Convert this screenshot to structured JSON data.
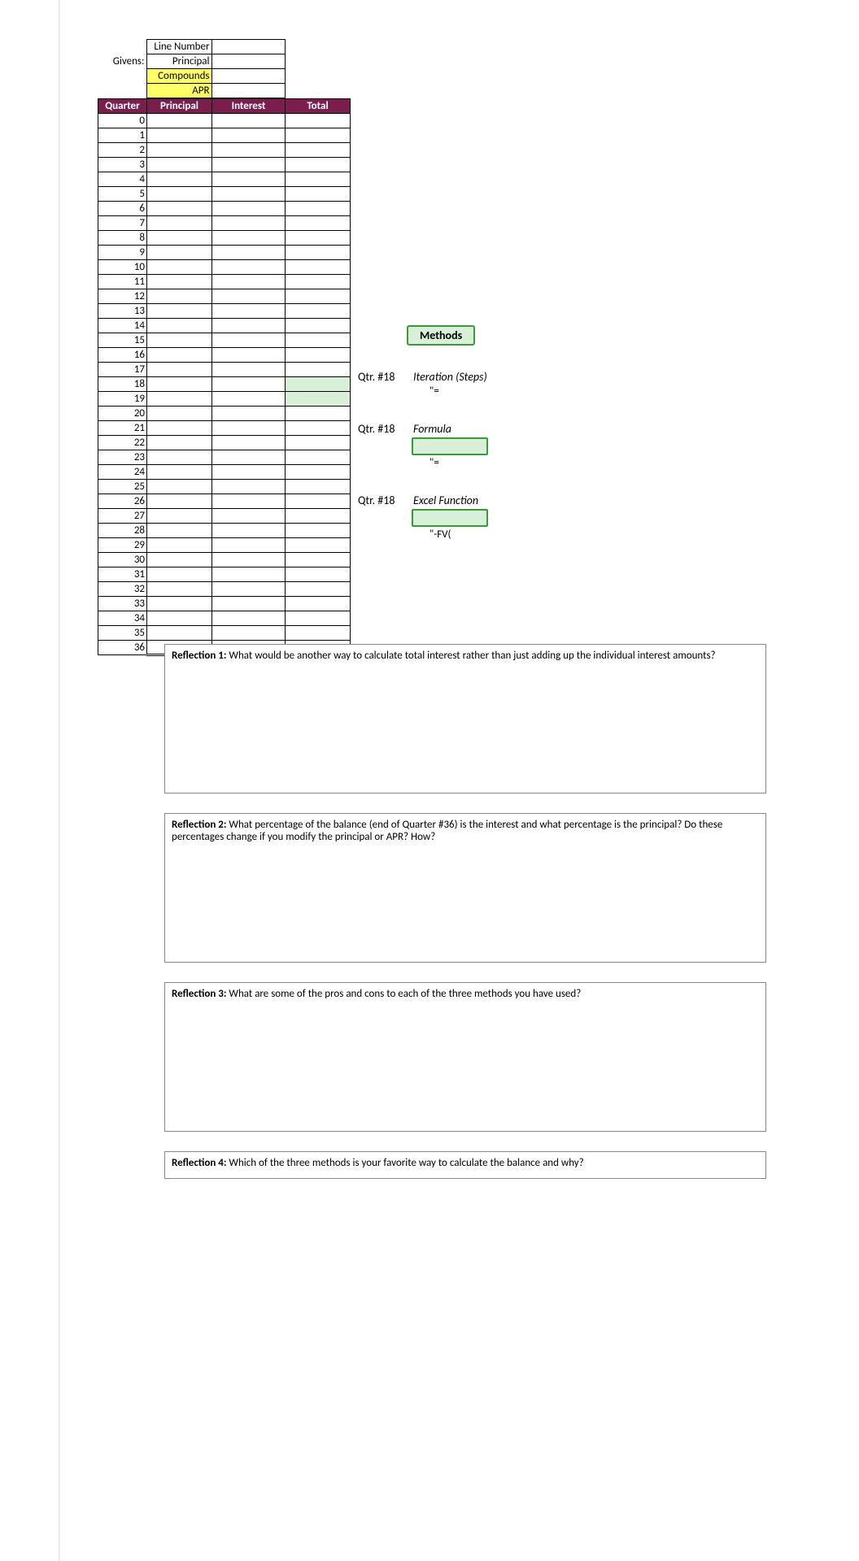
{
  "givens": {
    "section_label": "Givens:",
    "rows": [
      {
        "name": "Line Number",
        "highlight": false
      },
      {
        "name": "Principal",
        "highlight": false
      },
      {
        "name": "Compounds",
        "highlight": true
      },
      {
        "name": "APR",
        "highlight": true
      }
    ]
  },
  "table": {
    "headers": [
      "Quarter",
      "Principal",
      "Interest",
      "Total"
    ],
    "quarter_start": 0,
    "quarter_end": 36,
    "highlight_total_rows": [
      18,
      19
    ],
    "total_label": "Total:",
    "total_value": "$       -"
  },
  "methods": {
    "button": "Methods",
    "items": [
      {
        "label": "Qtr. #18",
        "title": "Iteration (Steps)",
        "hint": "\"=",
        "has_box": false
      },
      {
        "label": "Qtr. #18",
        "title": "Formula",
        "hint": "\"=",
        "has_box": true
      },
      {
        "label": "Qtr. #18",
        "title": "Excel Function",
        "hint": "\"-FV(",
        "has_box": true
      }
    ]
  },
  "reflections": [
    {
      "title": "Reflection 1:",
      "text": "What would be another way to calculate total interest rather than just adding up the individual interest amounts?"
    },
    {
      "title": "Reflection 2:",
      "text": "What percentage of the balance (end of Quarter #36) is the interest and what percentage is the principal? Do these percentages change if you modify the principal or APR? How?"
    },
    {
      "title": "Reflection 3:",
      "text": "What are some of the pros and cons to each of the three methods you have used?"
    },
    {
      "title": "Reflection 4:",
      "text": "Which of the three methods is your favorite way to calculate the balance and why?"
    }
  ]
}
